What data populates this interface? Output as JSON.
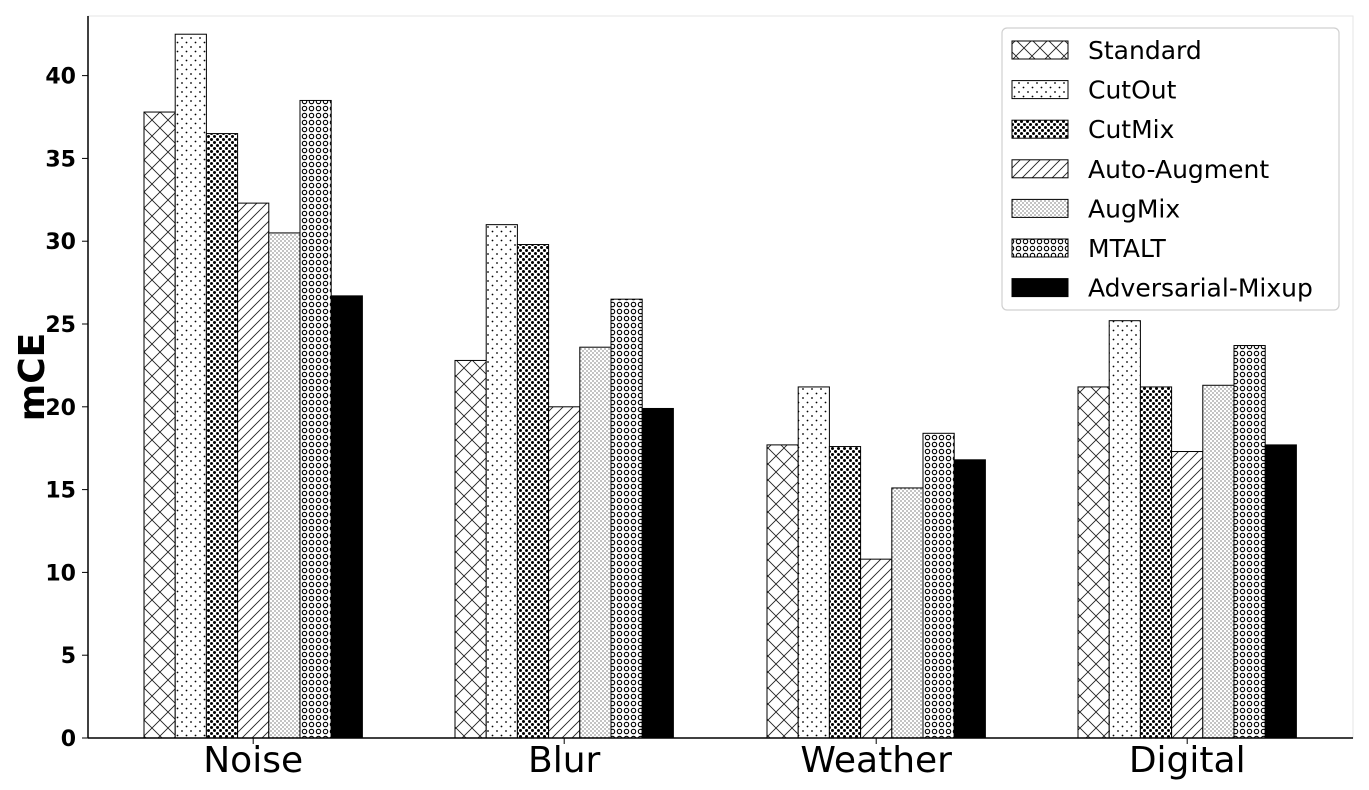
{
  "chart_data": {
    "type": "bar",
    "title": "",
    "xlabel": "",
    "ylabel": "mCE",
    "categories": [
      "Noise",
      "Blur",
      "Weather",
      "Digital"
    ],
    "ylim": [
      0,
      43.6
    ],
    "yticks": [
      0,
      5,
      10,
      15,
      20,
      25,
      30,
      35,
      40
    ],
    "grid": false,
    "legend_position": "top-right",
    "series": [
      {
        "name": "Standard",
        "values": [
          37.8,
          22.8,
          17.7,
          21.2
        ],
        "pattern": "crosshatch"
      },
      {
        "name": "CutOut",
        "values": [
          42.5,
          31.0,
          21.2,
          25.2
        ],
        "pattern": "sparse-dots"
      },
      {
        "name": "CutMix",
        "values": [
          36.5,
          29.8,
          17.6,
          21.2
        ],
        "pattern": "dense-dots"
      },
      {
        "name": "Auto-Augment",
        "values": [
          32.3,
          20.0,
          10.8,
          17.3
        ],
        "pattern": "diagonal"
      },
      {
        "name": "AugMix",
        "values": [
          30.5,
          23.6,
          15.1,
          21.3
        ],
        "pattern": "fine-dots"
      },
      {
        "name": "MTALT",
        "values": [
          38.5,
          26.5,
          18.4,
          23.7
        ],
        "pattern": "circles"
      },
      {
        "name": "Adversarial-Mixup",
        "values": [
          26.7,
          19.9,
          16.8,
          17.7
        ],
        "pattern": "solid"
      }
    ]
  }
}
